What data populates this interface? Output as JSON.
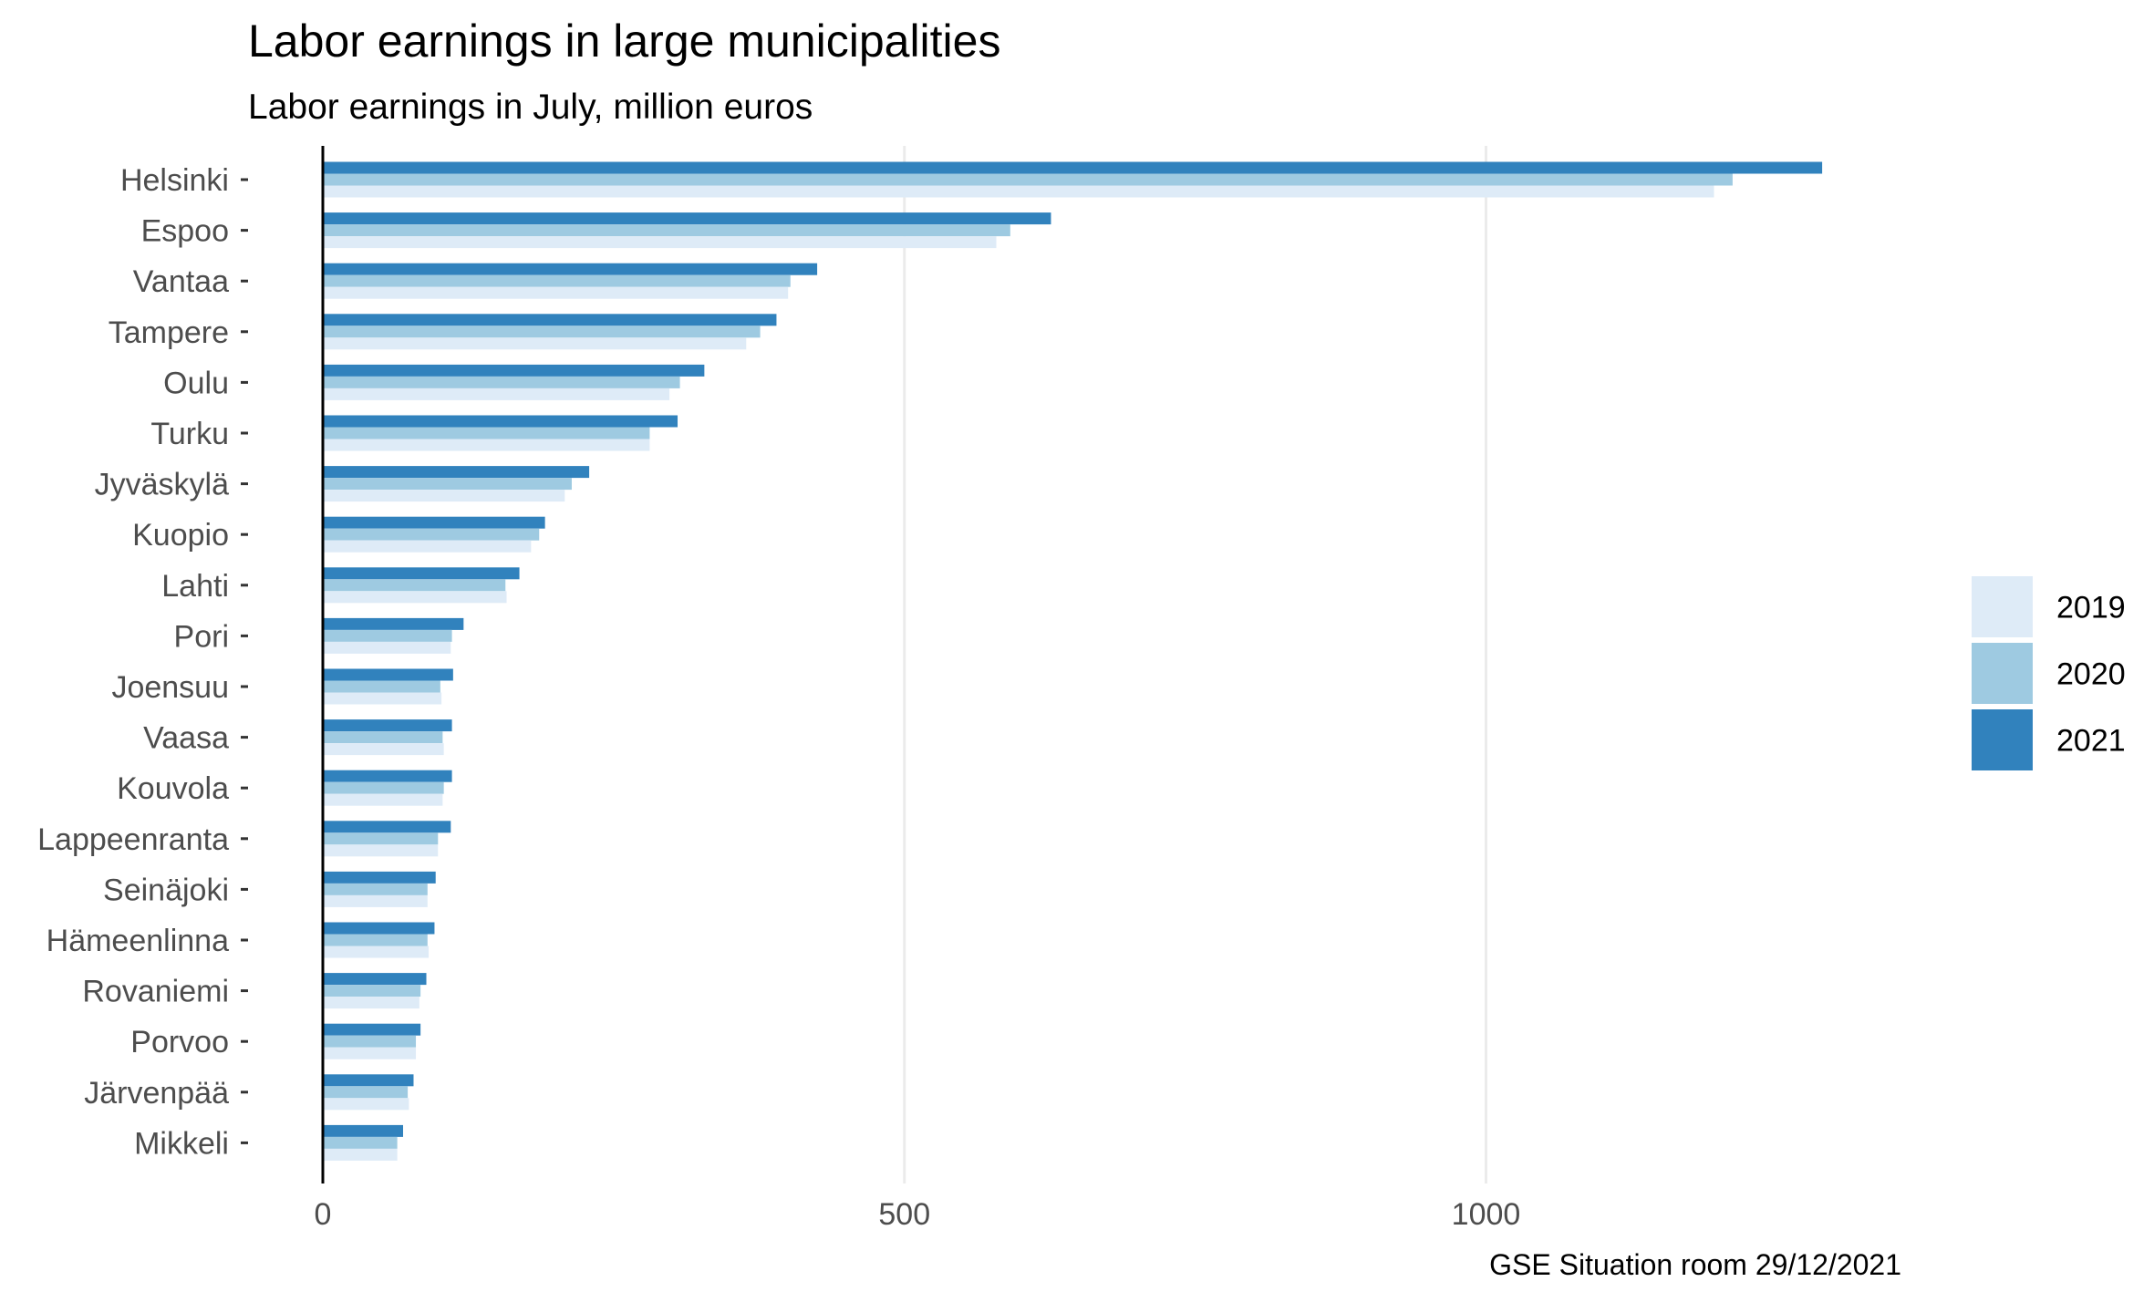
{
  "chart_data": {
    "type": "bar",
    "orientation": "horizontal",
    "title": "Labor earnings in large municipalities",
    "subtitle": "Labor earnings in July, million euros",
    "caption": "GSE Situation room 29/12/2021",
    "categories": [
      "Helsinki",
      "Espoo",
      "Vantaa",
      "Tampere",
      "Oulu",
      "Turku",
      "Jyväskylä",
      "Kuopio",
      "Lahti",
      "Pori",
      "Joensuu",
      "Vaasa",
      "Kouvola",
      "Lappeenranta",
      "Seinäjoki",
      "Hämeenlinna",
      "Rovaniemi",
      "Porvoo",
      "Järvenpää",
      "Mikkeli"
    ],
    "series": [
      {
        "name": "2019",
        "color": "#deebf7",
        "values": [
          1196,
          579,
          400,
          364,
          298,
          281,
          208,
          179,
          158,
          110,
          102,
          104,
          103,
          99,
          90,
          91,
          83,
          80,
          74,
          64
        ]
      },
      {
        "name": "2020",
        "color": "#9ecae1",
        "values": [
          1212,
          591,
          402,
          376,
          307,
          281,
          214,
          186,
          157,
          111,
          101,
          103,
          104,
          99,
          90,
          90,
          84,
          80,
          73,
          64
        ]
      },
      {
        "name": "2021",
        "color": "#3182bd",
        "values": [
          1289,
          626,
          425,
          390,
          328,
          305,
          229,
          191,
          169,
          121,
          112,
          111,
          111,
          110,
          97,
          96,
          89,
          84,
          78,
          69
        ]
      }
    ],
    "xticks": [
      0,
      500,
      1000
    ],
    "xlim": [
      0,
      1420
    ],
    "grid": "vertical major",
    "legend": "right"
  }
}
